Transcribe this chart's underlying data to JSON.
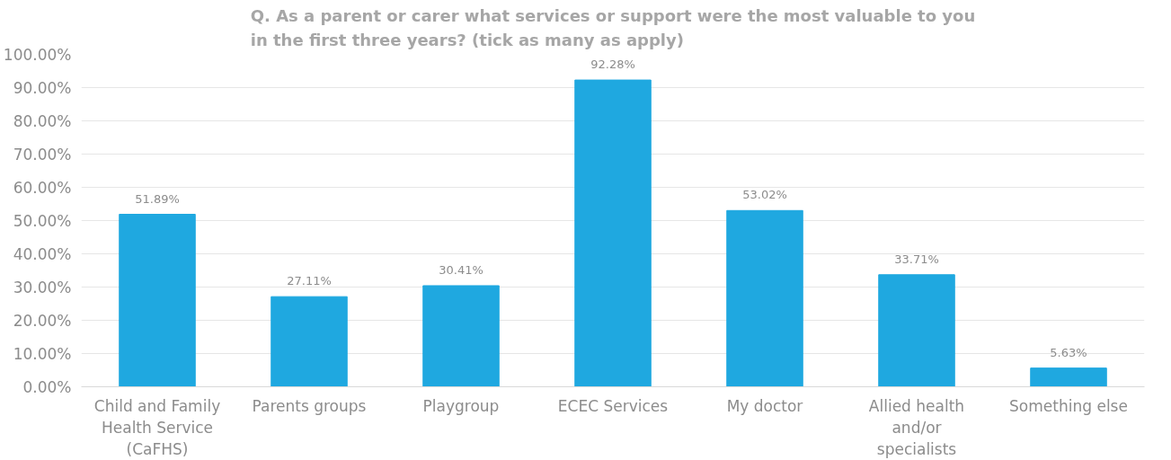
{
  "chart_data": {
    "type": "bar",
    "title": "Q. As a parent or carer what services or support were the most valuable to you\nin the first three years? (tick as many as apply)",
    "categories": [
      "Child and Family Health Service (CaFHS)",
      "Parents groups",
      "Playgroup",
      "ECEC Services",
      "My doctor",
      "Allied health and/or specialists",
      "Something else"
    ],
    "values": [
      51.89,
      27.11,
      30.41,
      92.28,
      53.02,
      33.71,
      5.63
    ],
    "value_labels": [
      "51.89%",
      "27.11%",
      "30.41%",
      "92.28%",
      "53.02%",
      "33.71%",
      "5.63%"
    ],
    "color": "#1fa8e0",
    "ylim": [
      0,
      100
    ],
    "yticks": [
      {
        "value": 0,
        "label": "0.00%"
      },
      {
        "value": 10,
        "label": "10.00%"
      },
      {
        "value": 20,
        "label": "20.00%"
      },
      {
        "value": 30,
        "label": "30.00%"
      },
      {
        "value": 40,
        "label": "40.00%"
      },
      {
        "value": 50,
        "label": "50.00%"
      },
      {
        "value": 60,
        "label": "60.00%"
      },
      {
        "value": 70,
        "label": "70.00%"
      },
      {
        "value": 80,
        "label": "80.00%"
      },
      {
        "value": 90,
        "label": "90.00%"
      },
      {
        "value": 100,
        "label": "100.00%"
      }
    ],
    "grid": "y"
  }
}
